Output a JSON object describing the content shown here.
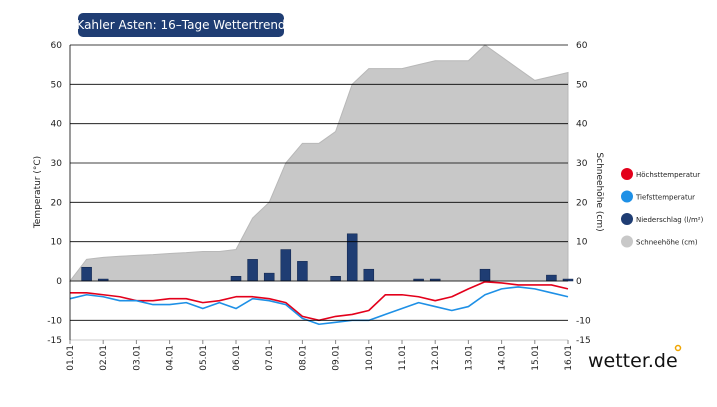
{
  "chart_data": {
    "type": "combo",
    "title": "Kahler Asten: 16–Tage Wettertrend",
    "ylabel": "Temperatur (°C)",
    "y2label": "Schneehöhe (cm)",
    "xlim": [
      0,
      15
    ],
    "xticks": [
      {
        "value": 0,
        "label": "01.01"
      },
      {
        "value": 1,
        "label": "02.01"
      },
      {
        "value": 2,
        "label": "03.01"
      },
      {
        "value": 3,
        "label": "04.01"
      },
      {
        "value": 4,
        "label": "05.01"
      },
      {
        "value": 5,
        "label": "06.01"
      },
      {
        "value": 6,
        "label": "07.01"
      },
      {
        "value": 7,
        "label": "08.01"
      },
      {
        "value": 8,
        "label": "09.01"
      },
      {
        "value": 9,
        "label": "10.01"
      },
      {
        "value": 10,
        "label": "11.01"
      },
      {
        "value": 11,
        "label": "12.01"
      },
      {
        "value": 12,
        "label": "13.01"
      },
      {
        "value": 13,
        "label": "14.01"
      },
      {
        "value": 14,
        "label": "15.01"
      },
      {
        "value": 15,
        "label": "16.01"
      }
    ],
    "ylim": [
      -15,
      60
    ],
    "yticks": [
      -15,
      -10,
      0,
      10,
      20,
      30,
      40,
      50,
      60
    ],
    "y2lim": [
      -15,
      60
    ],
    "y2ticks": [
      -15,
      -10,
      0,
      10,
      20,
      30,
      40,
      50,
      60
    ],
    "grid": true,
    "series": [
      {
        "name": "Schneehöhe (cm)",
        "type": "area",
        "axis": "y2",
        "color": "#c8c8c8",
        "x": [
          0,
          0.5,
          1,
          1.5,
          2,
          2.5,
          3,
          3.5,
          4,
          4.5,
          5,
          5.5,
          6,
          6.5,
          7,
          7.5,
          8,
          8.5,
          9,
          9.5,
          10,
          10.5,
          11,
          11.5,
          12,
          12.5,
          13,
          13.5,
          14,
          14.5,
          15
        ],
        "values": [
          0,
          5.5,
          6,
          6.3,
          6.5,
          6.7,
          7,
          7.2,
          7.5,
          7.5,
          8,
          16,
          20,
          30,
          35,
          35,
          38,
          50,
          54,
          54,
          54,
          55,
          56,
          56,
          56,
          60,
          57,
          54,
          51,
          52,
          53
        ]
      },
      {
        "name": "Höchsttemperatur",
        "type": "line",
        "color": "#e3001b",
        "x": [
          0,
          0.5,
          1,
          1.5,
          2,
          2.5,
          3,
          3.5,
          4,
          4.5,
          5,
          5.5,
          6,
          6.5,
          7,
          7.5,
          8,
          8.5,
          9,
          9.5,
          10,
          10.5,
          11,
          11.5,
          12,
          12.5,
          13,
          13.5,
          14,
          14.5,
          15
        ],
        "values": [
          -3,
          -3,
          -3.5,
          -4,
          -5,
          -5,
          -4.5,
          -4.5,
          -5.5,
          -5,
          -4,
          -4,
          -4.5,
          -5.5,
          -9,
          -10,
          -9,
          -8.5,
          -7.5,
          -3.5,
          -3.5,
          -4,
          -5,
          -4,
          -2,
          -0.2,
          -0.5,
          -1,
          -1,
          -1,
          -2
        ]
      },
      {
        "name": "Tiefsttemperatur",
        "type": "line",
        "color": "#1e90e6",
        "x": [
          0,
          0.5,
          1,
          1.5,
          2,
          2.5,
          3,
          3.5,
          4,
          4.5,
          5,
          5.5,
          6,
          6.5,
          7,
          7.5,
          8,
          8.5,
          9,
          9.5,
          10,
          10.5,
          11,
          11.5,
          12,
          12.5,
          13,
          13.5,
          14,
          14.5,
          15
        ],
        "values": [
          -4.5,
          -3.5,
          -4,
          -5,
          -5,
          -6,
          -6,
          -5.5,
          -7,
          -5.5,
          -7,
          -4.5,
          -5,
          -6,
          -9.5,
          -11,
          -10.5,
          -10,
          -10,
          -8.5,
          -7,
          -5.5,
          -6.5,
          -7.5,
          -6.5,
          -3.5,
          -2,
          -1.5,
          -2,
          -3,
          -4
        ]
      },
      {
        "name": "Niederschlag (l/m²)",
        "type": "bar",
        "color": "#1f3d73",
        "x": [
          0.5,
          1,
          5,
          5.5,
          6,
          6.5,
          7,
          8,
          8.5,
          9,
          10.5,
          11,
          12.5,
          14.5,
          15
        ],
        "values": [
          3.5,
          0.5,
          1.2,
          5.5,
          2,
          8,
          5,
          1.2,
          12,
          3,
          0.5,
          0.5,
          3,
          1.5,
          0.5
        ]
      }
    ]
  },
  "logo": "wetter.de"
}
